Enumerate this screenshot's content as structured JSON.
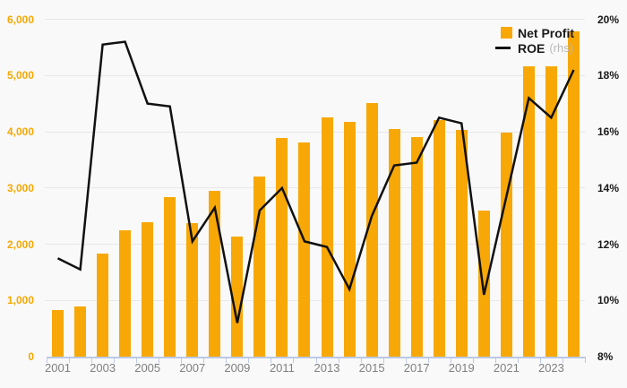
{
  "legend": {
    "net_profit": "Net Profit",
    "roe": "ROE",
    "rhs": "(rhs)"
  },
  "colors": {
    "bar": "#F8A806",
    "line": "#111111",
    "grid": "#e8e8e8",
    "axis": "#bcc9e6",
    "background": "#f9f9f9",
    "left_axis_labels": "#F5A800",
    "right_axis_labels": "#1a1a1a",
    "x_axis_labels": "#808080"
  },
  "chart_data": {
    "type": "bar",
    "title": "",
    "xlabel": "",
    "ylabel_left": "",
    "ylabel_right": "",
    "grid": true,
    "legend_position": "top-right",
    "x": [
      2001,
      2002,
      2003,
      2004,
      2005,
      2006,
      2007,
      2008,
      2009,
      2010,
      2011,
      2012,
      2013,
      2014,
      2015,
      2016,
      2017,
      2018,
      2019,
      2020,
      2021,
      2022,
      2023,
      2024
    ],
    "series": [
      {
        "name": "Net Profit",
        "type": "bar",
        "axis": "left",
        "color": "#F8A806",
        "values": [
          830,
          900,
          1830,
          2250,
          2390,
          2840,
          2370,
          2950,
          2130,
          3200,
          3890,
          3810,
          4260,
          4180,
          4510,
          4050,
          3910,
          4210,
          4030,
          2600,
          3980,
          5170,
          5170,
          5780
        ]
      },
      {
        "name": "ROE (rhs)",
        "type": "line",
        "axis": "right",
        "color": "#111111",
        "values": [
          11.5,
          11.1,
          19.1,
          19.2,
          17.0,
          16.9,
          12.1,
          13.3,
          9.2,
          13.2,
          14.0,
          12.1,
          11.9,
          10.4,
          13.0,
          14.8,
          14.9,
          16.5,
          16.3,
          10.2,
          13.7,
          17.2,
          16.5,
          18.2
        ]
      }
    ],
    "left_axis": {
      "min": 0,
      "max": 6000,
      "tick_step": 1000,
      "ticks": [
        0,
        1000,
        2000,
        3000,
        4000,
        5000,
        6000
      ],
      "tick_labels": [
        "0",
        "1,000",
        "2,000",
        "3,000",
        "4,000",
        "5,000",
        "6,000"
      ]
    },
    "right_axis": {
      "min": 8,
      "max": 20,
      "tick_step": 2,
      "ticks": [
        8,
        10,
        12,
        14,
        16,
        18,
        20
      ],
      "tick_labels": [
        "8%",
        "10%",
        "12%",
        "14%",
        "16%",
        "18%",
        "20%"
      ]
    },
    "x_axis": {
      "tick_label_years": [
        2001,
        2003,
        2005,
        2007,
        2009,
        2011,
        2013,
        2015,
        2017,
        2019,
        2021,
        2023
      ]
    }
  }
}
